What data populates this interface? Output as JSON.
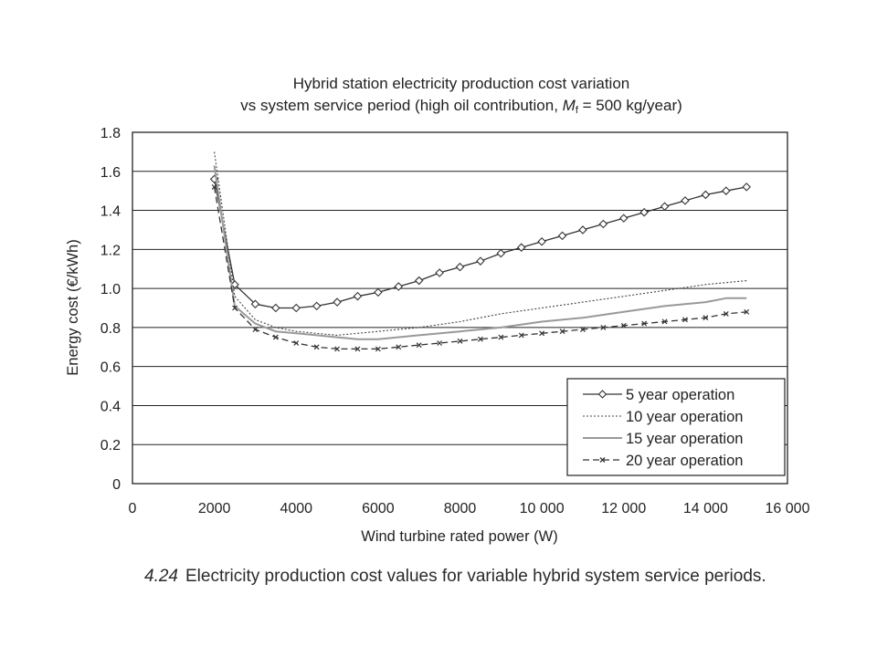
{
  "chart_data": {
    "type": "line",
    "title_line1": "Hybrid station electricity production cost variation",
    "title_line2_prefix": "vs system service period (high oil contribution, ",
    "title_line2_var": "M",
    "title_line2_sub": "f",
    "title_line2_suffix": " = 500 kg/year)",
    "xlabel": "Wind turbine rated power (W)",
    "ylabel": "Energy cost (€/kWh)",
    "xlim": [
      0,
      16000
    ],
    "ylim": [
      0,
      1.8
    ],
    "xticks": [
      0,
      2000,
      4000,
      6000,
      8000,
      10000,
      12000,
      14000,
      16000
    ],
    "xtick_labels": [
      "0",
      "2000",
      "4000",
      "6000",
      "8000",
      "10 000",
      "12 000",
      "14 000",
      "16 000"
    ],
    "yticks": [
      0,
      0.2,
      0.4,
      0.6,
      0.8,
      1.0,
      1.2,
      1.4,
      1.6,
      1.8
    ],
    "ytick_labels": [
      "0",
      "0.2",
      "0.4",
      "0.6",
      "0.8",
      "1.0",
      "1.2",
      "1.4",
      "1.6",
      "1.8"
    ],
    "grid": "horizontal",
    "legend_position": "bottom-right",
    "series": [
      {
        "name": "5 year operation",
        "style": "solid-diamond",
        "x": [
          2000,
          2500,
          3000,
          3500,
          4000,
          4500,
          5000,
          5500,
          6000,
          6500,
          7000,
          7500,
          8000,
          8500,
          9000,
          9500,
          10000,
          10500,
          11000,
          11500,
          12000,
          12500,
          13000,
          13500,
          14000,
          14500,
          15000
        ],
        "y": [
          1.56,
          1.02,
          0.92,
          0.9,
          0.9,
          0.91,
          0.93,
          0.96,
          0.98,
          1.01,
          1.04,
          1.08,
          1.11,
          1.14,
          1.18,
          1.21,
          1.24,
          1.27,
          1.3,
          1.33,
          1.36,
          1.39,
          1.42,
          1.45,
          1.48,
          1.5,
          1.52
        ]
      },
      {
        "name": "10 year operation",
        "style": "dotted",
        "x": [
          2000,
          2500,
          3000,
          3500,
          4000,
          4500,
          5000,
          5500,
          6000,
          7000,
          8000,
          9000,
          10000,
          11000,
          12000,
          13000,
          14000,
          15000
        ],
        "y": [
          1.7,
          0.96,
          0.84,
          0.8,
          0.78,
          0.77,
          0.76,
          0.77,
          0.78,
          0.8,
          0.83,
          0.87,
          0.9,
          0.93,
          0.96,
          0.99,
          1.02,
          1.04
        ]
      },
      {
        "name": "15 year operation",
        "style": "solid-grey",
        "x": [
          2000,
          2500,
          3000,
          3500,
          4000,
          4500,
          5000,
          5500,
          6000,
          7000,
          8000,
          9000,
          10000,
          11000,
          12000,
          13000,
          14000,
          14500,
          15000
        ],
        "y": [
          1.63,
          0.91,
          0.82,
          0.78,
          0.77,
          0.76,
          0.75,
          0.74,
          0.74,
          0.76,
          0.78,
          0.8,
          0.83,
          0.85,
          0.88,
          0.91,
          0.93,
          0.95,
          0.95
        ]
      },
      {
        "name": "20 year operation",
        "style": "dashed-x",
        "x": [
          2000,
          2500,
          3000,
          3500,
          4000,
          4500,
          5000,
          5500,
          6000,
          6500,
          7000,
          7500,
          8000,
          8500,
          9000,
          9500,
          10000,
          10500,
          11000,
          11500,
          12000,
          12500,
          13000,
          13500,
          14000,
          14500,
          15000
        ],
        "y": [
          1.52,
          0.9,
          0.79,
          0.75,
          0.72,
          0.7,
          0.69,
          0.69,
          0.69,
          0.7,
          0.71,
          0.72,
          0.73,
          0.74,
          0.75,
          0.76,
          0.77,
          0.78,
          0.79,
          0.8,
          0.81,
          0.82,
          0.83,
          0.84,
          0.85,
          0.87,
          0.88
        ]
      }
    ]
  },
  "caption": {
    "number": "4.24",
    "text": "Electricity production cost values for variable hybrid system service periods."
  }
}
